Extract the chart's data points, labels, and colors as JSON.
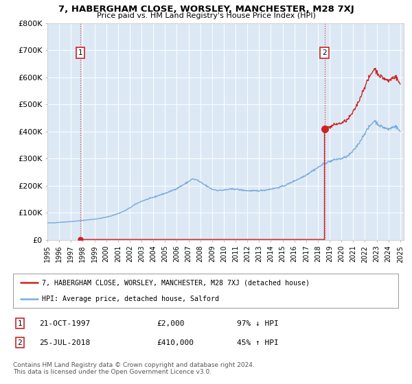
{
  "title": "7, HABERGHAM CLOSE, WORSLEY, MANCHESTER, M28 7XJ",
  "subtitle": "Price paid vs. HM Land Registry's House Price Index (HPI)",
  "background_color": "#ffffff",
  "plot_bg_color": "#dce9f5",
  "hpi_line_color": "#7aaadd",
  "price_line_color": "#cc2222",
  "ylim": [
    0,
    800000
  ],
  "yticks": [
    0,
    100000,
    200000,
    300000,
    400000,
    500000,
    600000,
    700000,
    800000
  ],
  "ytick_labels": [
    "£0",
    "£100K",
    "£200K",
    "£300K",
    "£400K",
    "£500K",
    "£600K",
    "£700K",
    "£800K"
  ],
  "sale1_date": 1997.81,
  "sale1_price": 2000,
  "sale1_label": "1",
  "sale2_date": 2018.56,
  "sale2_price": 410000,
  "sale2_label": "2",
  "legend_line1": "7, HABERGHAM CLOSE, WORSLEY, MANCHESTER, M28 7XJ (detached house)",
  "legend_line2": "HPI: Average price, detached house, Salford",
  "table_row1": [
    "1",
    "21-OCT-1997",
    "£2,000",
    "97% ↓ HPI"
  ],
  "table_row2": [
    "2",
    "25-JUL-2018",
    "£410,000",
    "45% ↑ HPI"
  ],
  "footer": "Contains HM Land Registry data © Crown copyright and database right 2024.\nThis data is licensed under the Open Government Licence v3.0."
}
